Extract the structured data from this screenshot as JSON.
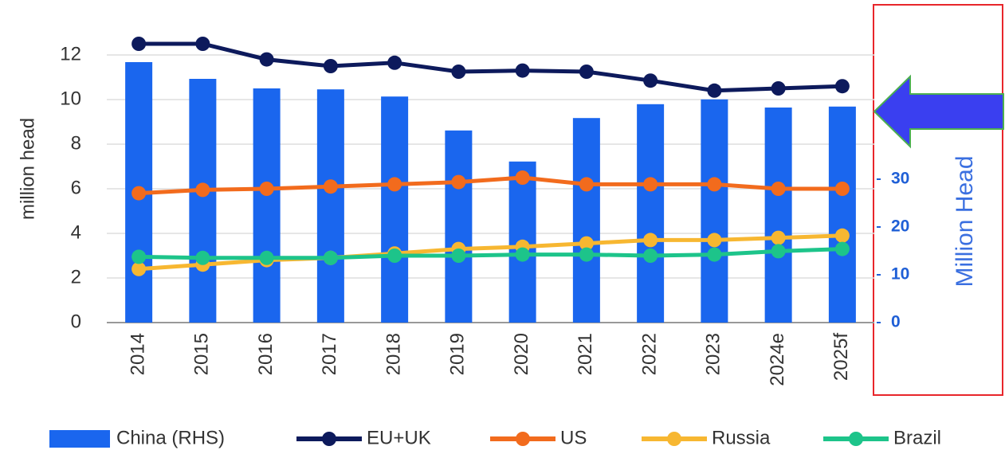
{
  "chart_data": {
    "type": "bar-line",
    "ylabel": "million head",
    "y2label": "Million Head",
    "categories": [
      "2014",
      "2015",
      "2016",
      "2017",
      "2018",
      "2019",
      "2020",
      "2021",
      "2022",
      "2023",
      "2024e",
      "2025f"
    ],
    "series": [
      {
        "name": "China (RHS)",
        "type": "bar",
        "axis": "y2",
        "color": "#1a66ee",
        "values": [
          54.5,
          51,
          49,
          48.8,
          47.3,
          40.2,
          33.7,
          42.8,
          45.7,
          46.7,
          45,
          45.2
        ]
      },
      {
        "name": "EU+UK",
        "type": "line",
        "color": "#0d1a5c",
        "values": [
          12.5,
          12.5,
          11.8,
          11.5,
          11.65,
          11.25,
          11.3,
          11.25,
          10.85,
          10.4,
          10.5,
          10.6
        ]
      },
      {
        "name": "US",
        "type": "line",
        "color": "#f26b1d",
        "values": [
          5.8,
          5.95,
          6.0,
          6.1,
          6.2,
          6.3,
          6.5,
          6.2,
          6.2,
          6.2,
          6.0,
          6.0
        ]
      },
      {
        "name": "Russia",
        "type": "line",
        "color": "#f7b731",
        "values": [
          2.4,
          2.6,
          2.8,
          2.9,
          3.1,
          3.3,
          3.4,
          3.55,
          3.7,
          3.7,
          3.8,
          3.9
        ]
      },
      {
        "name": "Brazil",
        "type": "line",
        "color": "#1dc48a",
        "values": [
          2.95,
          2.9,
          2.9,
          2.9,
          3.0,
          3.0,
          3.05,
          3.05,
          3.0,
          3.05,
          3.2,
          3.3
        ]
      }
    ],
    "ylim": [
      0,
      12
    ],
    "yticks": [
      0,
      2,
      4,
      6,
      8,
      10,
      12
    ],
    "y2lim": [
      0,
      56
    ],
    "y2ticks": [
      0,
      10,
      20,
      30
    ],
    "grid": true,
    "legend": "bottom"
  }
}
